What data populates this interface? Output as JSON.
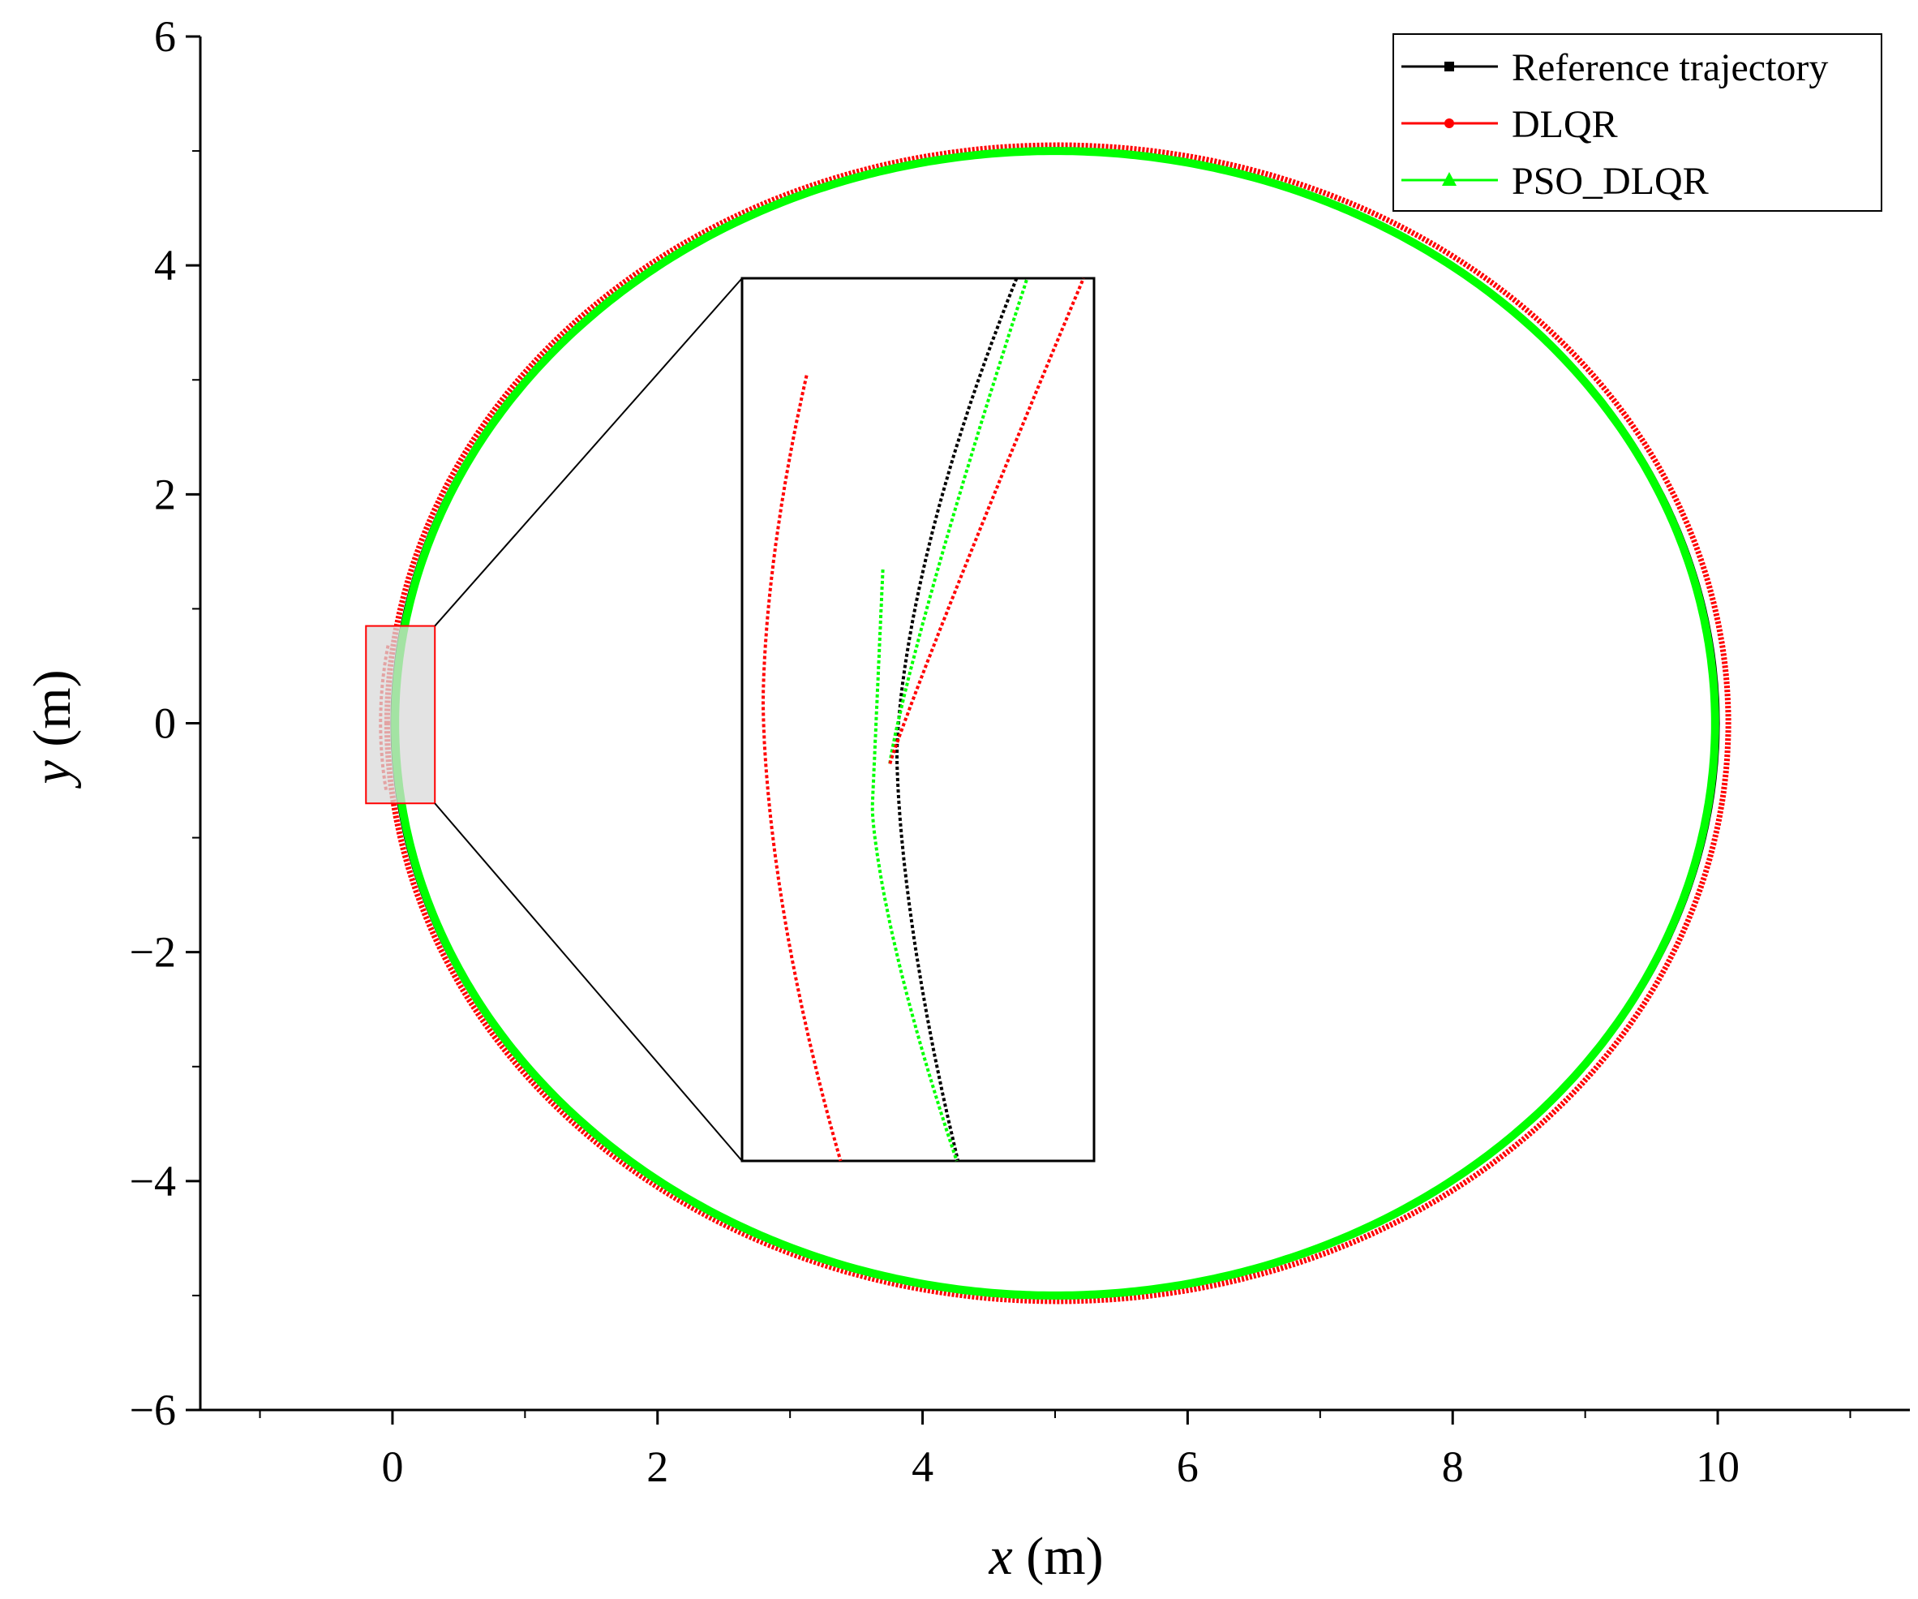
{
  "chart_data": {
    "type": "line",
    "xlabel_var": "x",
    "xlabel_unit": " (m)",
    "ylabel_var": "y",
    "ylabel_unit": " (m)",
    "xlim": [
      -1.45,
      11.45
    ],
    "ylim": [
      -6,
      6
    ],
    "x_ticks": [
      0,
      2,
      4,
      6,
      8,
      10
    ],
    "x_tick_labels": [
      "0",
      "2",
      "4",
      "6",
      "8",
      "10"
    ],
    "y_ticks": [
      -6,
      -4,
      -2,
      0,
      2,
      4,
      6
    ],
    "y_tick_labels": [
      "−6",
      "−4",
      "−2",
      "0",
      "2",
      "4",
      "6"
    ],
    "grid": false,
    "legend_position": "top-right",
    "series": [
      {
        "name": "Reference trajectory",
        "color": "#000000",
        "marker": "square",
        "shape": "circle",
        "center": [
          5,
          0
        ],
        "radius_x": 5,
        "radius_y": 5
      },
      {
        "name": "DLQR",
        "color": "#ff0000",
        "marker": "circle",
        "shape": "circle",
        "center": [
          5.02,
          0
        ],
        "radius_x": 5.06,
        "radius_y": 5.05,
        "start_point": [
          -0.02,
          0.68
        ],
        "start_dip_min_x": -0.09
      },
      {
        "name": "PSO_DLQR",
        "color": "#00ff00",
        "marker": "triangle",
        "shape": "circle",
        "center": [
          5.0,
          0
        ],
        "radius_x": 4.98,
        "radius_y": 5.0,
        "start_point": [
          0.0,
          0.4
        ]
      }
    ],
    "zoom_region": {
      "x_range": [
        -0.2,
        0.32
      ],
      "y_range": [
        -0.7,
        0.85
      ]
    },
    "inset": {
      "region_color": "#ff0000",
      "region_fill": "#d9d9d9"
    }
  }
}
